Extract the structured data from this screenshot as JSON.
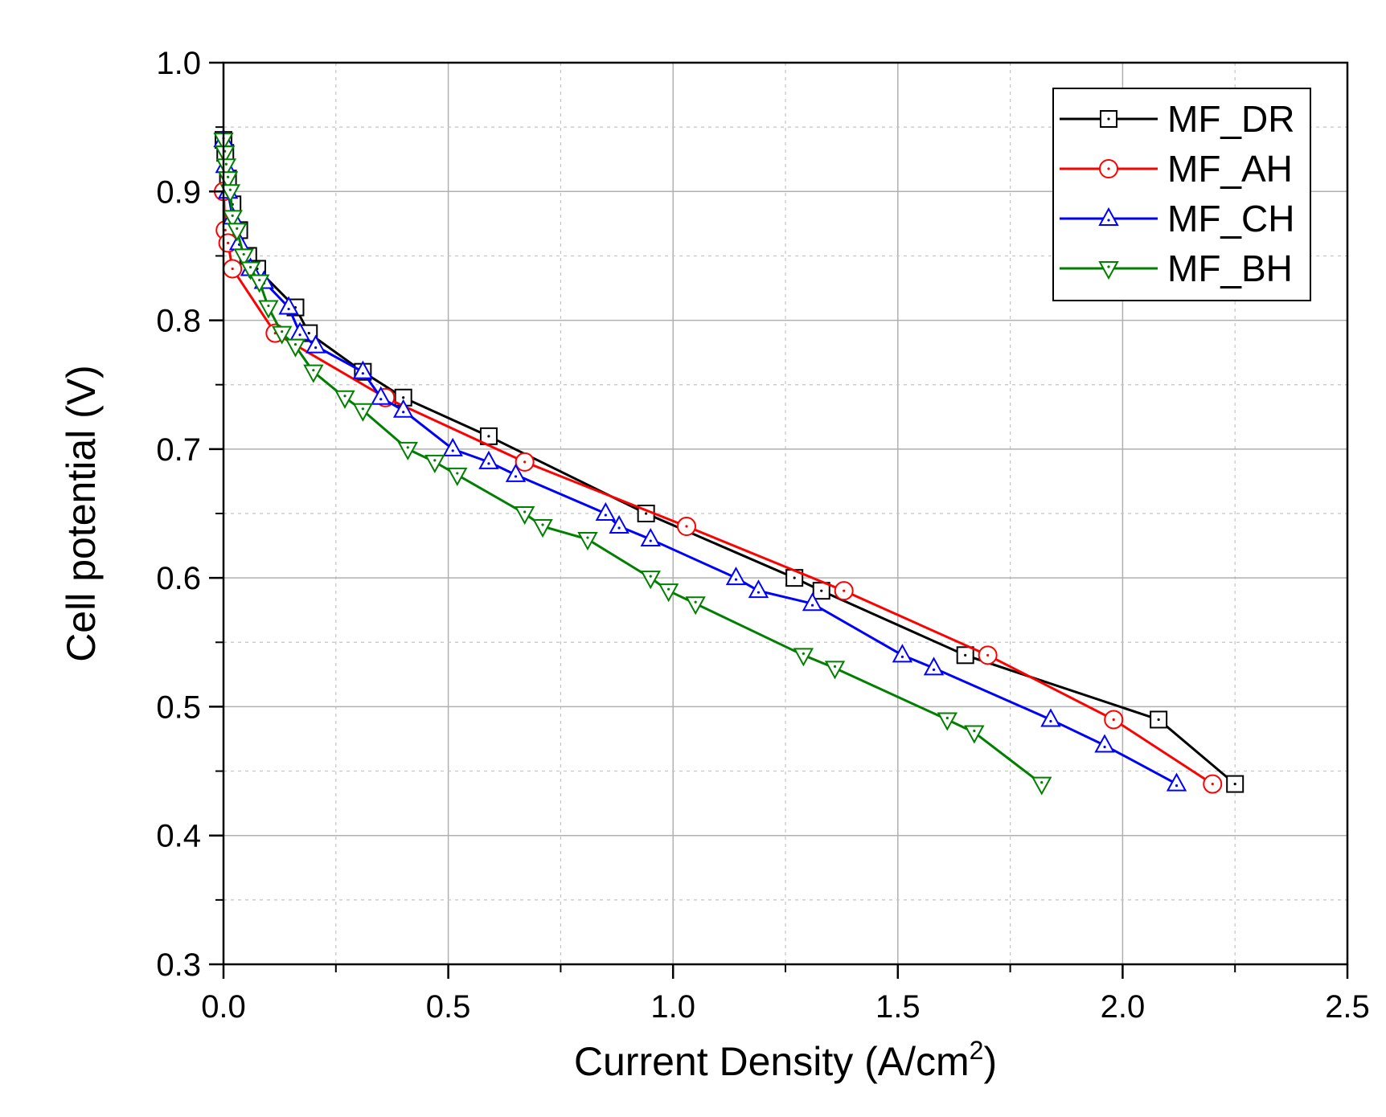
{
  "chart_data": {
    "type": "line",
    "xlabel": "Current Density (A/cm",
    "xlabel_sup": "2",
    "xlabel_end": ")",
    "ylabel": "Cell potential (V)",
    "xlim": [
      0,
      2.5
    ],
    "ylim": [
      0.3,
      1.0
    ],
    "x_ticks": [
      0.0,
      0.5,
      1.0,
      1.5,
      2.0,
      2.5
    ],
    "x_tick_labels": [
      "0.0",
      "0.5",
      "1.0",
      "1.5",
      "2.0",
      "2.5"
    ],
    "y_ticks": [
      0.3,
      0.4,
      0.5,
      0.6,
      0.7,
      0.8,
      0.9,
      1.0
    ],
    "y_tick_labels": [
      "0.3",
      "0.4",
      "0.5",
      "0.6",
      "0.7",
      "0.8",
      "0.9",
      "1.0"
    ],
    "grid": true,
    "legend_position": "top-right",
    "series": [
      {
        "name": "MF_DR",
        "color": "#000000",
        "marker": "square",
        "x": [
          0.0,
          0.004,
          0.01,
          0.02,
          0.035,
          0.055,
          0.075,
          0.16,
          0.19,
          0.31,
          0.4,
          0.59,
          0.94,
          1.27,
          1.33,
          1.65,
          2.08,
          2.25
        ],
        "y": [
          0.94,
          0.93,
          0.91,
          0.89,
          0.87,
          0.85,
          0.84,
          0.81,
          0.79,
          0.76,
          0.74,
          0.71,
          0.65,
          0.6,
          0.59,
          0.54,
          0.49,
          0.44
        ]
      },
      {
        "name": "MF_AH",
        "color": "#ff0000",
        "marker": "circle",
        "x": [
          0.0,
          0.004,
          0.01,
          0.02,
          0.115,
          0.36,
          0.67,
          1.03,
          1.38,
          1.7,
          1.98,
          2.2
        ],
        "y": [
          0.9,
          0.87,
          0.86,
          0.84,
          0.79,
          0.74,
          0.69,
          0.64,
          0.59,
          0.54,
          0.49,
          0.44
        ]
      },
      {
        "name": "MF_CH",
        "color": "#0000ff",
        "marker": "triangle-up",
        "x": [
          0.0,
          0.004,
          0.01,
          0.02,
          0.035,
          0.06,
          0.09,
          0.145,
          0.17,
          0.205,
          0.31,
          0.35,
          0.4,
          0.51,
          0.59,
          0.65,
          0.85,
          0.88,
          0.95,
          1.14,
          1.19,
          1.31,
          1.51,
          1.58,
          1.84,
          1.96,
          2.12
        ],
        "y": [
          0.94,
          0.92,
          0.9,
          0.88,
          0.86,
          0.84,
          0.83,
          0.81,
          0.79,
          0.78,
          0.76,
          0.74,
          0.73,
          0.7,
          0.69,
          0.68,
          0.65,
          0.64,
          0.63,
          0.6,
          0.59,
          0.58,
          0.54,
          0.53,
          0.49,
          0.47,
          0.44
        ]
      },
      {
        "name": "MF_BH",
        "color": "#007f00",
        "marker": "triangle-down",
        "x": [
          0.0,
          0.003,
          0.006,
          0.01,
          0.015,
          0.02,
          0.03,
          0.045,
          0.06,
          0.08,
          0.1,
          0.13,
          0.16,
          0.2,
          0.27,
          0.31,
          0.41,
          0.47,
          0.52,
          0.67,
          0.71,
          0.81,
          0.95,
          0.99,
          1.05,
          1.29,
          1.36,
          1.61,
          1.67,
          1.82
        ],
        "y": [
          0.94,
          0.93,
          0.92,
          0.91,
          0.9,
          0.88,
          0.87,
          0.85,
          0.84,
          0.83,
          0.81,
          0.79,
          0.78,
          0.76,
          0.74,
          0.73,
          0.7,
          0.69,
          0.68,
          0.65,
          0.64,
          0.63,
          0.6,
          0.59,
          0.58,
          0.54,
          0.53,
          0.49,
          0.48,
          0.44
        ]
      }
    ]
  }
}
